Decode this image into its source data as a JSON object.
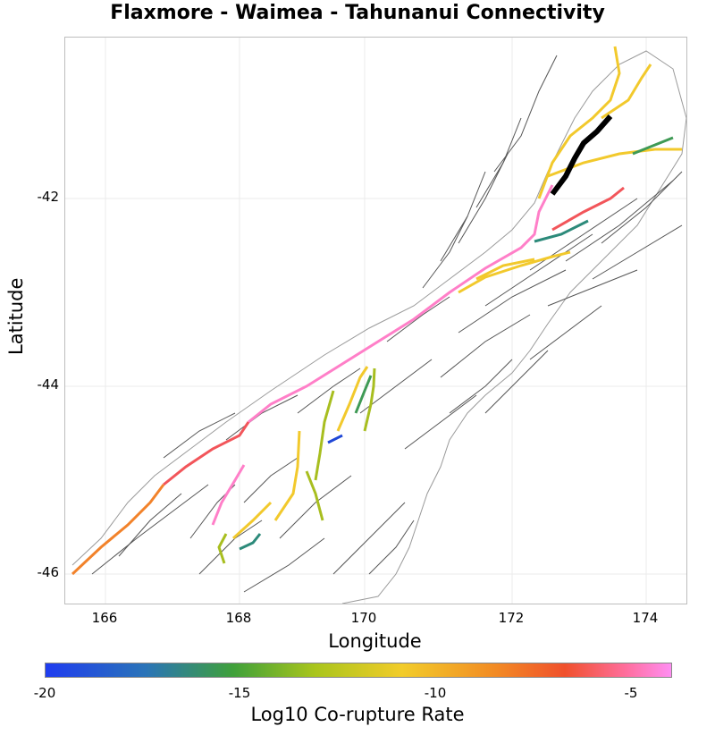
{
  "title": "Flaxmore - Waimea - Tahunanui Connectivity",
  "map": {
    "xlabel": "Longitude",
    "ylabel": "Latitude",
    "x_ticks": [
      "166",
      "168",
      "170",
      "172",
      "174"
    ],
    "y_ticks": [
      "-42",
      "-44",
      "-46"
    ],
    "xlim": [
      165.5,
      174.5
    ],
    "ylim": [
      -46.3,
      -40.3
    ],
    "grid": true
  },
  "colorbar": {
    "label": "Log10 Co-rupture Rate",
    "ticks": [
      "-20",
      "-15",
      "-10",
      "-5"
    ],
    "range": [
      -20,
      -4
    ],
    "colors": [
      "#1f3cf0",
      "#2a74b8",
      "#3fa03a",
      "#a9c51c",
      "#f2cc2a",
      "#f28a24",
      "#f0502c",
      "#ff6fa0",
      "#ff8ef2"
    ]
  },
  "highlighted_fault": {
    "color": "#000000"
  },
  "legend_colors": {
    "pink": "#ff7fc8",
    "red": "#f2555a",
    "orange": "#f2822a",
    "yellow": "#f2c92c",
    "olive": "#a8be1f",
    "green": "#3f9a55",
    "teal": "#2c8a7a",
    "blue": "#1f47d6",
    "grey_fault": "#555555"
  }
}
